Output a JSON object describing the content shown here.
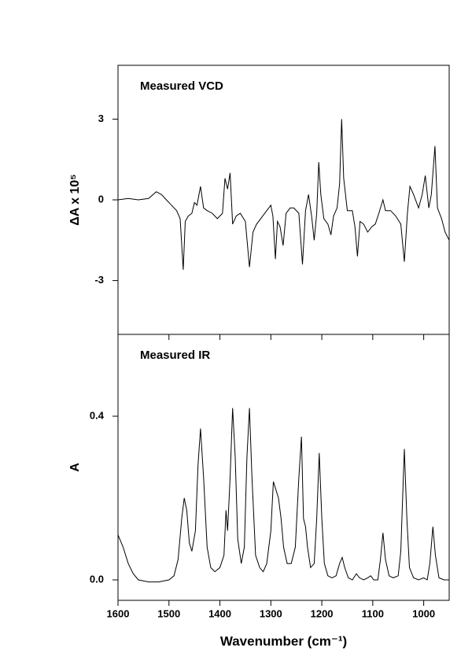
{
  "chart_data": [
    {
      "type": "line",
      "title": "Measured VCD",
      "y_label": "ΔA x 10⁵",
      "color": "#000000",
      "xlim": [
        1600,
        950
      ],
      "xticks": [
        1600,
        1500,
        1400,
        1300,
        1200,
        1100,
        1000
      ],
      "ylim": [
        -5,
        5
      ],
      "yticks": [
        3,
        0,
        -3
      ],
      "x": [
        1600,
        1580,
        1560,
        1540,
        1525,
        1515,
        1505,
        1495,
        1485,
        1478,
        1472,
        1468,
        1462,
        1455,
        1450,
        1445,
        1438,
        1432,
        1425,
        1415,
        1405,
        1395,
        1390,
        1385,
        1380,
        1375,
        1368,
        1360,
        1350,
        1342,
        1335,
        1328,
        1320,
        1308,
        1300,
        1296,
        1291,
        1287,
        1282,
        1276,
        1270,
        1262,
        1255,
        1245,
        1238,
        1232,
        1226,
        1220,
        1215,
        1210,
        1206,
        1202,
        1196,
        1188,
        1182,
        1177,
        1170,
        1165,
        1161,
        1157,
        1150,
        1140,
        1135,
        1130,
        1125,
        1118,
        1110,
        1102,
        1095,
        1088,
        1080,
        1075,
        1065,
        1055,
        1045,
        1038,
        1032,
        1027,
        1020,
        1010,
        1003,
        997,
        990,
        985,
        978,
        973,
        965,
        958,
        950
      ],
      "values": [
        0.0,
        0.05,
        0.0,
        0.05,
        0.3,
        0.2,
        0.0,
        -0.2,
        -0.4,
        -0.7,
        -2.6,
        -0.8,
        -0.6,
        -0.5,
        -0.1,
        -0.2,
        0.5,
        -0.3,
        -0.4,
        -0.5,
        -0.7,
        -0.5,
        0.8,
        0.4,
        1.0,
        -0.9,
        -0.6,
        -0.5,
        -0.8,
        -2.5,
        -1.2,
        -0.9,
        -0.7,
        -0.4,
        -0.2,
        -0.6,
        -2.2,
        -0.8,
        -1.0,
        -1.7,
        -0.5,
        -0.3,
        -0.3,
        -0.5,
        -2.4,
        -0.4,
        0.2,
        -0.6,
        -1.5,
        -0.5,
        1.4,
        0.2,
        -0.7,
        -0.9,
        -1.3,
        -0.6,
        -0.3,
        0.6,
        3.0,
        0.8,
        -0.4,
        -0.4,
        -1.0,
        -2.1,
        -0.8,
        -0.9,
        -1.2,
        -1.0,
        -0.9,
        -0.5,
        0.0,
        -0.4,
        -0.4,
        -0.6,
        -0.9,
        -2.3,
        -0.5,
        0.5,
        0.2,
        -0.3,
        0.2,
        0.9,
        -0.3,
        0.2,
        2.0,
        -0.3,
        -0.7,
        -1.2,
        -1.5
      ]
    },
    {
      "type": "line",
      "title": "Measured IR",
      "y_label": "A",
      "x_label": "Wavenumber (cm⁻¹)",
      "color": "#000000",
      "xlim": [
        1600,
        950
      ],
      "xticks": [
        1600,
        1500,
        1400,
        1300,
        1200,
        1100,
        1000
      ],
      "ylim": [
        -0.05,
        0.6
      ],
      "yticks": [
        0.4,
        {
          "value": 0,
          "label": "0.0"
        }
      ],
      "x": [
        1600,
        1590,
        1580,
        1570,
        1560,
        1540,
        1520,
        1500,
        1490,
        1482,
        1475,
        1470,
        1465,
        1460,
        1455,
        1448,
        1443,
        1438,
        1432,
        1425,
        1418,
        1410,
        1400,
        1392,
        1388,
        1385,
        1380,
        1375,
        1370,
        1365,
        1358,
        1352,
        1347,
        1342,
        1337,
        1330,
        1322,
        1315,
        1308,
        1300,
        1295,
        1290,
        1285,
        1280,
        1275,
        1268,
        1260,
        1252,
        1245,
        1240,
        1236,
        1232,
        1228,
        1222,
        1215,
        1210,
        1205,
        1200,
        1195,
        1188,
        1180,
        1172,
        1165,
        1160,
        1155,
        1148,
        1140,
        1132,
        1126,
        1118,
        1110,
        1104,
        1098,
        1090,
        1085,
        1080,
        1075,
        1068,
        1060,
        1050,
        1045,
        1040,
        1038,
        1033,
        1028,
        1020,
        1010,
        1000,
        993,
        988,
        982,
        977,
        970,
        960,
        950
      ],
      "values": [
        0.11,
        0.08,
        0.04,
        0.015,
        0.0,
        -0.005,
        -0.005,
        0.0,
        0.01,
        0.05,
        0.15,
        0.2,
        0.17,
        0.09,
        0.07,
        0.12,
        0.28,
        0.37,
        0.25,
        0.08,
        0.03,
        0.02,
        0.03,
        0.06,
        0.17,
        0.12,
        0.25,
        0.42,
        0.3,
        0.1,
        0.04,
        0.08,
        0.3,
        0.42,
        0.25,
        0.06,
        0.03,
        0.02,
        0.04,
        0.12,
        0.24,
        0.22,
        0.2,
        0.15,
        0.08,
        0.04,
        0.04,
        0.08,
        0.25,
        0.35,
        0.15,
        0.13,
        0.08,
        0.03,
        0.04,
        0.15,
        0.31,
        0.15,
        0.04,
        0.01,
        0.005,
        0.01,
        0.04,
        0.055,
        0.03,
        0.005,
        0.0,
        0.015,
        0.005,
        0.0,
        0.005,
        0.01,
        0.0,
        0.0,
        0.05,
        0.115,
        0.05,
        0.01,
        0.005,
        0.01,
        0.07,
        0.25,
        0.32,
        0.15,
        0.03,
        0.005,
        0.0,
        0.005,
        0.0,
        0.04,
        0.13,
        0.06,
        0.005,
        0.0,
        0.0
      ]
    }
  ]
}
